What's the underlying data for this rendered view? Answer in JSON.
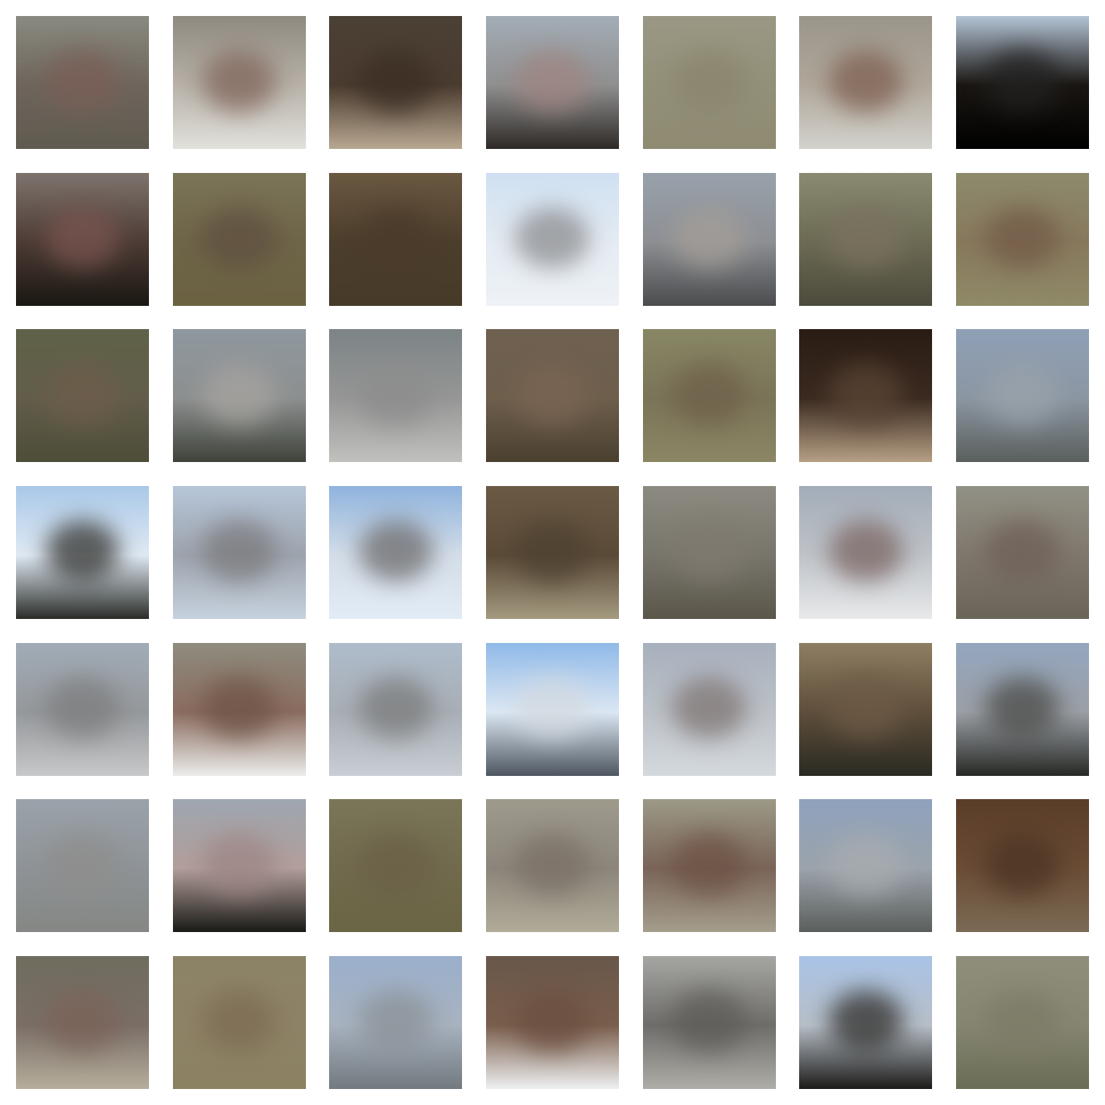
{
  "grid": {
    "rows": 7,
    "cols": 7,
    "tiles": [
      {
        "top": "#8a8a80",
        "mid": "#6e655c",
        "bot": "#5f5a4f",
        "blob": "#7a5e56"
      },
      {
        "top": "#8f8a80",
        "mid": "#b7b1a8",
        "bot": "#e2e1dc",
        "blob": "#80655a"
      },
      {
        "top": "#4b4034",
        "mid": "#4a3b2f",
        "bot": "#b8a891",
        "blob": "#3b2e24"
      },
      {
        "top": "#a3adb6",
        "mid": "#8f8f8f",
        "bot": "#2e2a27",
        "blob": "#9f8581"
      },
      {
        "top": "#9a9884",
        "mid": "#939079",
        "bot": "#8f8b72",
        "blob": "#8a846d"
      },
      {
        "top": "#9a958a",
        "mid": "#b0a79b",
        "bot": "#d3d2cc",
        "blob": "#7d5f50"
      },
      {
        "top": "#b4c4d6",
        "mid": "#1a1612",
        "bot": "#000000",
        "blob": "#222222"
      },
      {
        "top": "#7e746d",
        "mid": "#4d3b35",
        "bot": "#1a1712",
        "blob": "#7a5550"
      },
      {
        "top": "#7b7558",
        "mid": "#6e6448",
        "bot": "#6b6242",
        "blob": "#5f5040"
      },
      {
        "top": "#6a5841",
        "mid": "#4c3e2c",
        "bot": "#463a28",
        "blob": "#4b3a2a"
      },
      {
        "top": "#cfe0f2",
        "mid": "#e4ebf2",
        "bot": "#eef2f6",
        "blob": "#8b8c8f"
      },
      {
        "top": "#98a1ab",
        "mid": "#8c8f93",
        "bot": "#4a4c4e",
        "blob": "#a59e98"
      },
      {
        "top": "#8a8a72",
        "mid": "#6c6a53",
        "bot": "#4c4b3c",
        "blob": "#7b7260"
      },
      {
        "top": "#8d8b6c",
        "mid": "#87785c",
        "bot": "#8f8a68",
        "blob": "#735a48"
      },
      {
        "top": "#5f6248",
        "mid": "#625d4a",
        "bot": "#4d4d38",
        "blob": "#6e5d4b"
      },
      {
        "top": "#8f989f",
        "mid": "#8c8f8f",
        "bot": "#3f433a",
        "blob": "#a7a4a0"
      },
      {
        "top": "#7c8486",
        "mid": "#969696",
        "bot": "#c0c0bd",
        "blob": "#8c8c8c"
      },
      {
        "top": "#6f6150",
        "mid": "#6e5e4c",
        "bot": "#4a4030",
        "blob": "#7b6554"
      },
      {
        "top": "#888765",
        "mid": "#7a7458",
        "bot": "#8b8664",
        "blob": "#6f604a"
      },
      {
        "top": "#2a1c14",
        "mid": "#3a2a20",
        "bot": "#b69f85",
        "blob": "#5b4535"
      },
      {
        "top": "#8fa0b6",
        "mid": "#8b96a2",
        "bot": "#5a5f5c",
        "blob": "#9aa3ab"
      },
      {
        "top": "#a9c8e8",
        "mid": "#dfe9f3",
        "bot": "#2a2c28",
        "blob": "#30302c"
      },
      {
        "top": "#b6c6d9",
        "mid": "#9da3ad",
        "bot": "#c6d2de",
        "blob": "#7a7a7c"
      },
      {
        "top": "#8fb3dd",
        "mid": "#d3dde8",
        "bot": "#e3ecf6",
        "blob": "#6b6a6b"
      },
      {
        "top": "#6b5b45",
        "mid": "#5a4a37",
        "bot": "#a49a80",
        "blob": "#4f4232"
      },
      {
        "top": "#8d8b81",
        "mid": "#78756c",
        "bot": "#5a5649",
        "blob": "#807a70"
      },
      {
        "top": "#a2acb8",
        "mid": "#bfc3c8",
        "bot": "#e7e9ea",
        "blob": "#7a6462"
      },
      {
        "top": "#929185",
        "mid": "#7f776d",
        "bot": "#6a6458",
        "blob": "#6f6056"
      },
      {
        "top": "#a1acb7",
        "mid": "#95989b",
        "bot": "#c6c8c9",
        "blob": "#7c7d7e"
      },
      {
        "top": "#8e8c7e",
        "mid": "#8a6c5f",
        "bot": "#ececea",
        "blob": "#6e5346"
      },
      {
        "top": "#aebccb",
        "mid": "#a8aeb5",
        "bot": "#c8ced4",
        "blob": "#7a7b7b"
      },
      {
        "top": "#8fb9e8",
        "mid": "#dbe7f3",
        "bot": "#4e5660",
        "blob": "#d3d9df"
      },
      {
        "top": "#a7b0bd",
        "mid": "#bcc1c7",
        "bot": "#d4d9de",
        "blob": "#7e7472"
      },
      {
        "top": "#8e7f63",
        "mid": "#5e4e3b",
        "bot": "#2a2a22",
        "blob": "#6d5a45"
      },
      {
        "top": "#93a6bf",
        "mid": "#9b9fa5",
        "bot": "#272925",
        "blob": "#4a4b48"
      },
      {
        "top": "#9aa3aa",
        "mid": "#8e9397",
        "bot": "#858784",
        "blob": "#8e8d8b"
      },
      {
        "top": "#9ea6b0",
        "mid": "#b29e9a",
        "bot": "#1a1a16",
        "blob": "#9c8584"
      },
      {
        "top": "#7a7658",
        "mid": "#716a4d",
        "bot": "#6a6544",
        "blob": "#6a6048"
      },
      {
        "top": "#9e9a8c",
        "mid": "#8c857b",
        "bot": "#b0ab98",
        "blob": "#7a7066"
      },
      {
        "top": "#9c9a86",
        "mid": "#7a6458",
        "bot": "#a49e8c",
        "blob": "#6d5245"
      },
      {
        "top": "#8fa2bd",
        "mid": "#9ba3ab",
        "bot": "#5b5f5c",
        "blob": "#a8acb0"
      },
      {
        "top": "#5a3d28",
        "mid": "#6a4c35",
        "bot": "#7b6a55",
        "blob": "#4a3424"
      },
      {
        "top": "#6f6d5e",
        "mid": "#7a6e66",
        "bot": "#b6ae9c",
        "blob": "#7b6258"
      },
      {
        "top": "#8c8366",
        "mid": "#8e8266",
        "bot": "#8b8262",
        "blob": "#7c6c52"
      },
      {
        "top": "#9bb0cc",
        "mid": "#a7b2bf",
        "bot": "#72797f",
        "blob": "#8a9096"
      },
      {
        "top": "#68574a",
        "mid": "#7a5e4c",
        "bot": "#eef0f1",
        "blob": "#6b4f40"
      },
      {
        "top": "#a6a6a2",
        "mid": "#6e6d6a",
        "bot": "#aeada7",
        "blob": "#5d5c59"
      },
      {
        "top": "#a9c3e6",
        "mid": "#b6bec7",
        "bot": "#1c1b18",
        "blob": "#2e2d2a"
      },
      {
        "top": "#8e8e7a",
        "mid": "#858572",
        "bot": "#6b6c54",
        "blob": "#7c7b66"
      }
    ]
  }
}
